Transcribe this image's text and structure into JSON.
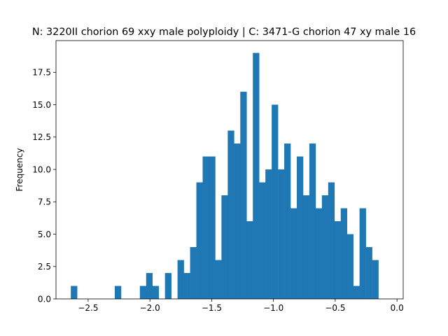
{
  "chart_data": {
    "type": "bar",
    "title": "N: 3220II chorion 69 xxy male polyploidy | C: 3471-G chorion 47 xy male 16",
    "xlabel": "",
    "ylabel": "Frequency",
    "xlim": [
      -2.76,
      0.05
    ],
    "ylim": [
      0,
      19.95
    ],
    "xticks": [
      -2.5,
      -2.0,
      -1.5,
      -1.0,
      -0.5,
      0.0
    ],
    "xtick_labels": [
      "−2.5",
      "−2.0",
      "−1.5",
      "−1.0",
      "−0.5",
      "0.0"
    ],
    "yticks": [
      0,
      2.5,
      5,
      7.5,
      10,
      12.5,
      15,
      17.5
    ],
    "ytick_labels": [
      "0.0",
      "2.5",
      "5.0",
      "7.5",
      "10.0",
      "12.5",
      "15.0",
      "17.5"
    ],
    "bin_start": -2.64,
    "bin_width": 0.0508,
    "counts": [
      1,
      0,
      0,
      0,
      0,
      0,
      0,
      1,
      0,
      0,
      0,
      1,
      2,
      1,
      0,
      2,
      0,
      3,
      2,
      4,
      9,
      11,
      11,
      3,
      8,
      13,
      12,
      16,
      6,
      19,
      9,
      10,
      15,
      10,
      12,
      7,
      11,
      8,
      12,
      7,
      8,
      9,
      6,
      7,
      5,
      1,
      7,
      4,
      3
    ],
    "bar_color": "#1f77b4",
    "grid": false,
    "legend": "none"
  }
}
